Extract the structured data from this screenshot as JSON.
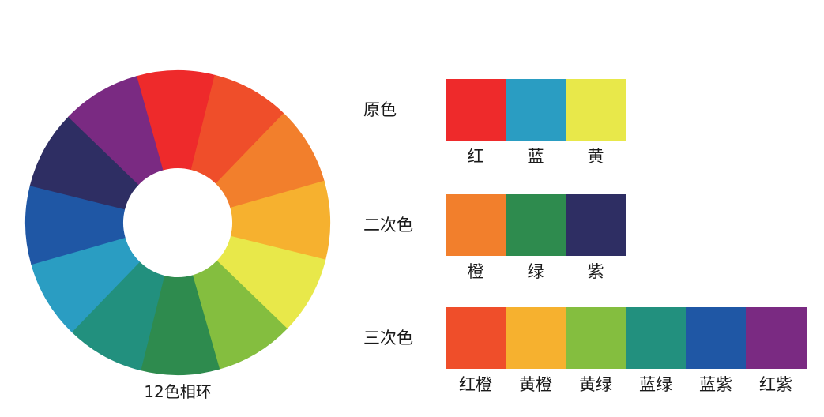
{
  "wheel": {
    "caption": "12色相环",
    "segments": [
      {
        "color": "#EE2A2B"
      },
      {
        "color": "#EF4E2A"
      },
      {
        "color": "#F27F2C"
      },
      {
        "color": "#F6B12F"
      },
      {
        "color": "#E8E84A"
      },
      {
        "color": "#84BE3F"
      },
      {
        "color": "#2E8B4E"
      },
      {
        "color": "#22907E"
      },
      {
        "color": "#2A9DC2"
      },
      {
        "color": "#1F57A5"
      },
      {
        "color": "#2E2E63"
      },
      {
        "color": "#7A2A82"
      }
    ]
  },
  "rows": [
    {
      "label": "原色",
      "swatches": [
        {
          "name": "红",
          "color": "#EE2A2B"
        },
        {
          "name": "蓝",
          "color": "#2A9DC2"
        },
        {
          "name": "黄",
          "color": "#E8E84A"
        }
      ]
    },
    {
      "label": "二次色",
      "swatches": [
        {
          "name": "橙",
          "color": "#F27F2C"
        },
        {
          "name": "绿",
          "color": "#2E8B4E"
        },
        {
          "name": "紫",
          "color": "#2E2E63"
        }
      ]
    },
    {
      "label": "三次色",
      "swatches": [
        {
          "name": "红橙",
          "color": "#EF4E2A"
        },
        {
          "name": "黄橙",
          "color": "#F6B12F"
        },
        {
          "name": "黄绿",
          "color": "#84BE3F"
        },
        {
          "name": "蓝绿",
          "color": "#22907E"
        },
        {
          "name": "蓝紫",
          "color": "#1F57A5"
        },
        {
          "name": "红紫",
          "color": "#7A2A82"
        }
      ]
    }
  ]
}
